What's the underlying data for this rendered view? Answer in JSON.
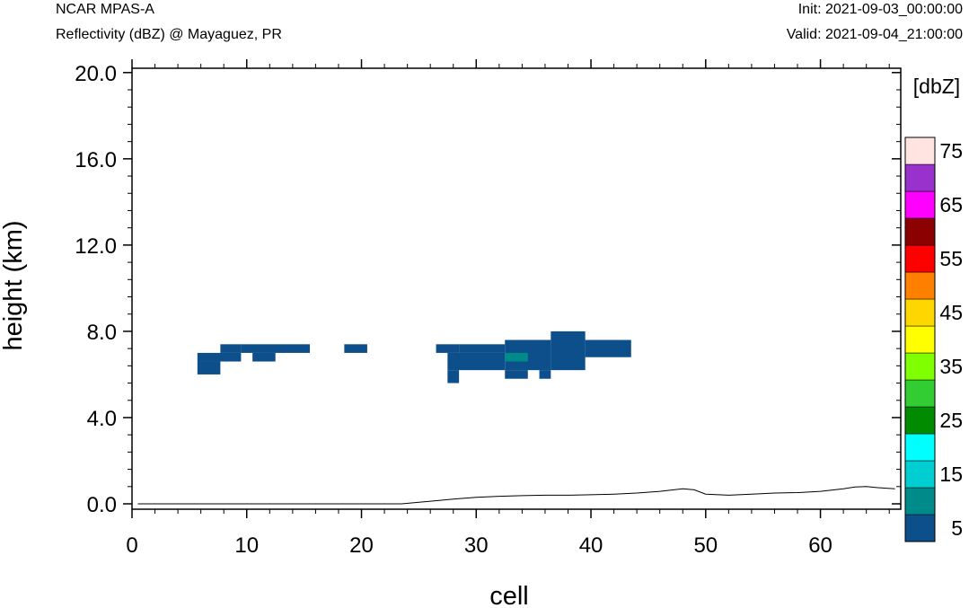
{
  "header": {
    "model": "NCAR MPAS-A",
    "field": "Reflectivity (dBZ) @ Mayaguez, PR",
    "init": "Init: 2021-09-03_00:00:00",
    "valid": "Valid: 2021-09-04_21:00:00"
  },
  "chart_data": {
    "type": "heatmap",
    "xlabel": "cell",
    "ylabel": "height (km)",
    "xlim": [
      0,
      67
    ],
    "ylim": [
      -0.25,
      20.2
    ],
    "x_ticks": [
      0,
      10,
      20,
      30,
      40,
      50,
      60
    ],
    "y_ticks": [
      0.0,
      4.0,
      8.0,
      12.0,
      16.0,
      20.0
    ],
    "y_tick_labels": [
      "0.0",
      "4.0",
      "8.0",
      "12.0",
      "16.0",
      "20.0"
    ],
    "colorbar": {
      "title": "[dbZ]",
      "levels": [
        5,
        10,
        15,
        20,
        25,
        30,
        35,
        40,
        45,
        50,
        55,
        60,
        65,
        70,
        75
      ],
      "labels": [
        "5",
        "15",
        "25",
        "35",
        "45",
        "55",
        "65",
        "75"
      ],
      "colors": [
        "#0d4f8b",
        "#008b8b",
        "#00ced1",
        "#00ffff",
        "#008b00",
        "#32cd32",
        "#7fff00",
        "#ffff00",
        "#ffd700",
        "#ff7f00",
        "#ff0000",
        "#8b0000",
        "#ff00ff",
        "#9932cc",
        "#ffe4e1"
      ]
    },
    "cells": [
      {
        "x0": 5.7,
        "x1": 7.7,
        "y0": 6.0,
        "y1": 6.6,
        "dbz": 5
      },
      {
        "x0": 5.7,
        "x1": 9.5,
        "y0": 6.6,
        "y1": 7.0,
        "dbz": 5
      },
      {
        "x0": 7.7,
        "x1": 9.5,
        "y0": 7.0,
        "y1": 7.4,
        "dbz": 5
      },
      {
        "x0": 9.5,
        "x1": 15.5,
        "y0": 7.0,
        "y1": 7.4,
        "dbz": 5
      },
      {
        "x0": 10.5,
        "x1": 12.5,
        "y0": 6.6,
        "y1": 7.0,
        "dbz": 5
      },
      {
        "x0": 18.5,
        "x1": 20.5,
        "y0": 7.0,
        "y1": 7.4,
        "dbz": 5
      },
      {
        "x0": 26.5,
        "x1": 28.5,
        "y0": 7.0,
        "y1": 7.4,
        "dbz": 5
      },
      {
        "x0": 27.5,
        "x1": 28.5,
        "y0": 5.6,
        "y1": 6.2,
        "dbz": 5
      },
      {
        "x0": 27.5,
        "x1": 32.5,
        "y0": 6.2,
        "y1": 7.0,
        "dbz": 5
      },
      {
        "x0": 28.5,
        "x1": 32.5,
        "y0": 7.0,
        "y1": 7.4,
        "dbz": 5
      },
      {
        "x0": 32.5,
        "x1": 36.5,
        "y0": 6.2,
        "y1": 7.6,
        "dbz": 5
      },
      {
        "x0": 32.5,
        "x1": 34.5,
        "y0": 5.8,
        "y1": 6.2,
        "dbz": 5
      },
      {
        "x0": 35.5,
        "x1": 36.5,
        "y0": 5.8,
        "y1": 6.2,
        "dbz": 5
      },
      {
        "x0": 36.5,
        "x1": 39.5,
        "y0": 6.2,
        "y1": 8.0,
        "dbz": 5
      },
      {
        "x0": 39.5,
        "x1": 43.5,
        "y0": 6.8,
        "y1": 7.6,
        "dbz": 5
      },
      {
        "x0": 32.5,
        "x1": 34.5,
        "y0": 6.6,
        "y1": 7.0,
        "dbz": 10
      }
    ],
    "terrain": {
      "x": [
        0.5,
        5,
        10,
        15,
        20,
        23.5,
        26,
        28,
        30,
        32,
        34,
        36,
        38,
        40,
        42,
        44,
        46,
        48,
        49,
        50,
        52,
        54,
        56,
        58,
        60,
        62,
        63,
        64,
        65,
        66.5
      ],
      "y": [
        0.0,
        0.0,
        0.0,
        0.0,
        0.0,
        0.0,
        0.12,
        0.22,
        0.3,
        0.35,
        0.38,
        0.4,
        0.4,
        0.42,
        0.45,
        0.5,
        0.58,
        0.7,
        0.65,
        0.45,
        0.4,
        0.45,
        0.5,
        0.52,
        0.58,
        0.7,
        0.78,
        0.8,
        0.75,
        0.7
      ]
    }
  }
}
